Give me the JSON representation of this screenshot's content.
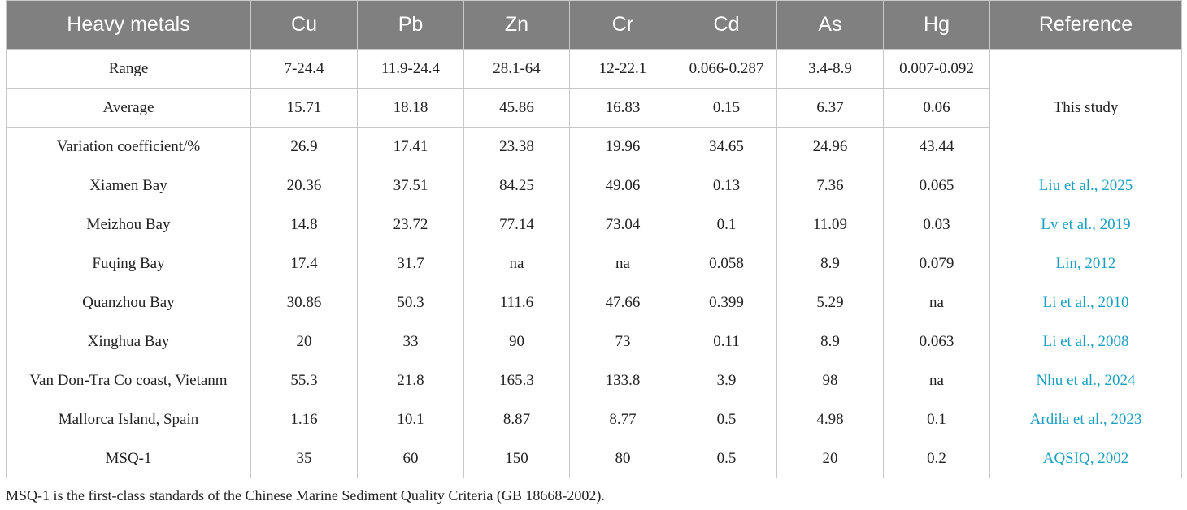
{
  "table": {
    "header": [
      "Heavy metals",
      "Cu",
      "Pb",
      "Zn",
      "Cr",
      "Cd",
      "As",
      "Hg",
      "Reference"
    ],
    "groups": [
      {
        "reference": "This study",
        "rows": [
          [
            "Range",
            "7-24.4",
            "11.9-24.4",
            "28.1-64",
            "12-22.1",
            "0.066-0.287",
            "3.4-8.9",
            "0.007-0.092"
          ],
          [
            "Average",
            "15.71",
            "18.18",
            "45.86",
            "16.83",
            "0.15",
            "6.37",
            "0.06"
          ],
          [
            "Variation coefficient/%",
            "26.9",
            "17.41",
            "23.38",
            "19.96",
            "34.65",
            "24.96",
            "43.44"
          ]
        ]
      },
      {
        "reference": "Liu et al., 2025",
        "rows": [
          [
            "Xiamen Bay",
            "20.36",
            "37.51",
            "84.25",
            "49.06",
            "0.13",
            "7.36",
            "0.065"
          ]
        ]
      },
      {
        "reference": "Lv et al., 2019",
        "rows": [
          [
            "Meizhou Bay",
            "14.8",
            "23.72",
            "77.14",
            "73.04",
            "0.1",
            "11.09",
            "0.03"
          ]
        ]
      },
      {
        "reference": "Lin, 2012",
        "rows": [
          [
            "Fuqing Bay",
            "17.4",
            "31.7",
            "na",
            "na",
            "0.058",
            "8.9",
            "0.079"
          ]
        ]
      },
      {
        "reference": "Li et al., 2010",
        "rows": [
          [
            "Quanzhou Bay",
            "30.86",
            "50.3",
            "111.6",
            "47.66",
            "0.399",
            "5.29",
            "na"
          ]
        ]
      },
      {
        "reference": "Li et al., 2008",
        "rows": [
          [
            "Xinghua Bay",
            "20",
            "33",
            "90",
            "73",
            "0.11",
            "8.9",
            "0.063"
          ]
        ]
      },
      {
        "reference": "Nhu et al., 2024",
        "rows": [
          [
            "Van Don-Tra Co coast, Vietanm",
            "55.3",
            "21.8",
            "165.3",
            "133.8",
            "3.9",
            "98",
            "na"
          ]
        ]
      },
      {
        "reference": "Ardila et al., 2023",
        "rows": [
          [
            "Mallorca Island, Spain",
            "1.16",
            "10.1",
            "8.87",
            "8.77",
            "0.5",
            "4.98",
            "0.1"
          ]
        ]
      },
      {
        "reference": "AQSIQ, 2002",
        "rows": [
          [
            "MSQ-1",
            "35",
            "60",
            "150",
            "80",
            "0.5",
            "20",
            "0.2"
          ]
        ]
      }
    ]
  },
  "footnote": "MSQ-1 is the first-class standards of the Chinese Marine Sediment Quality Criteria (GB 18668-2002)."
}
